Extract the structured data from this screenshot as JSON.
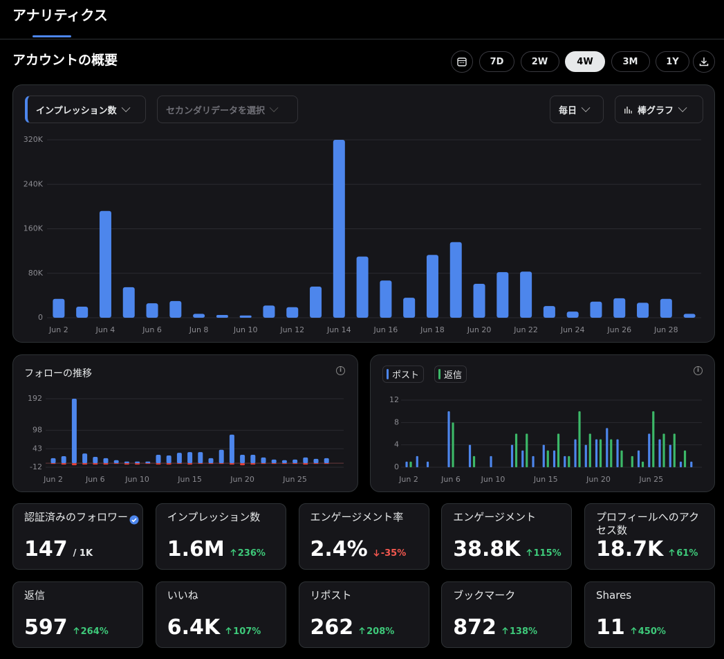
{
  "header": {
    "tab": "アナリティクス"
  },
  "overview": {
    "title": "アカウントの概要",
    "ranges": [
      "7D",
      "2W",
      "4W",
      "3M",
      "1Y"
    ],
    "selected_range": "4W"
  },
  "controls": {
    "metric": "インプレッション数",
    "secondary": "セカンダリデータを選択",
    "interval": "毎日",
    "chart_style": "棒グラフ"
  },
  "chart_data": [
    {
      "type": "bar",
      "categories": [
        "Jun 2",
        null,
        "Jun 4",
        null,
        "Jun 6",
        null,
        "Jun 8",
        null,
        "Jun 10",
        null,
        "Jun 12",
        null,
        "Jun 14",
        null,
        "Jun 16",
        null,
        "Jun 18",
        null,
        "Jun 20",
        null,
        "Jun 22",
        null,
        "Jun 24",
        null,
        "Jun 26",
        null,
        "Jun 28",
        null
      ],
      "values": [
        34000,
        20000,
        192000,
        55000,
        26000,
        30000,
        7000,
        5000,
        4000,
        22000,
        19000,
        56000,
        320000,
        110000,
        67000,
        36000,
        113000,
        136000,
        61000,
        82000,
        83000,
        21000,
        11000,
        29000,
        35000,
        27000,
        34000,
        7000
      ],
      "color": "#4d86ec",
      "ylim": [
        0,
        320000
      ],
      "yticks": [
        0,
        {
          "value": 80000,
          "label": "80K"
        },
        {
          "value": 160000,
          "label": "160K"
        },
        {
          "value": 240000,
          "label": "240K"
        },
        {
          "value": 320000,
          "label": "320K"
        }
      ],
      "grid": true
    },
    {
      "type": "bar",
      "title": "フォローの推移",
      "categories": [
        "Jun 2",
        null,
        null,
        null,
        "Jun 6",
        null,
        null,
        null,
        "Jun 10",
        null,
        null,
        null,
        null,
        "Jun 15",
        null,
        null,
        null,
        null,
        "Jun 20",
        null,
        null,
        null,
        null,
        "Jun 25",
        null,
        null,
        null
      ],
      "series": [
        {
          "color": "#4d86ec",
          "values": [
            15,
            21,
            192,
            29,
            19,
            15,
            9,
            5,
            5,
            5,
            25,
            23,
            31,
            33,
            33,
            15,
            40,
            85,
            25,
            25,
            17,
            11,
            9,
            11,
            17,
            13,
            15
          ]
        },
        {
          "color": "#e0403a",
          "values": [
            -2,
            -4,
            -6,
            -4,
            -4,
            -4,
            -2,
            -4,
            -4,
            -2,
            -4,
            -4,
            -2,
            -4,
            -2,
            -2,
            -2,
            -4,
            -6,
            -4,
            -2,
            -2,
            -2,
            -2,
            -4,
            -2,
            -2
          ]
        }
      ],
      "ylim": [
        -12,
        192
      ],
      "yticks": [
        -12,
        43,
        98,
        192
      ],
      "grid": true
    },
    {
      "type": "bar",
      "categories": [
        "Jun 2",
        null,
        null,
        null,
        "Jun 6",
        null,
        null,
        null,
        "Jun 10",
        null,
        null,
        null,
        null,
        "Jun 15",
        null,
        null,
        null,
        null,
        "Jun 20",
        null,
        null,
        null,
        null,
        "Jun 25",
        null,
        null,
        null,
        null
      ],
      "series": [
        {
          "name": "ポスト",
          "color": "#4d86ec",
          "values": [
            1,
            2,
            1,
            0,
            10,
            0,
            4,
            0,
            2,
            0,
            4,
            3,
            2,
            4,
            3,
            2,
            5,
            4,
            5,
            7,
            5,
            0,
            3,
            6,
            5,
            4,
            1,
            1
          ]
        },
        {
          "name": "返信",
          "color": "#3cb868",
          "values": [
            1,
            0,
            0,
            0,
            8,
            0,
            2,
            0,
            0,
            0,
            6,
            6,
            0,
            3,
            6,
            2,
            10,
            6,
            5,
            5,
            3,
            2,
            1,
            10,
            6,
            6,
            3,
            0
          ]
        }
      ],
      "ylim": [
        0,
        12
      ],
      "yticks": [
        0,
        4,
        8,
        12
      ],
      "grid": true
    }
  ],
  "cards": [
    {
      "label": "認証済みのフォロワー",
      "value": "147",
      "total": "/ 1K",
      "verified": true
    },
    {
      "label": "インプレッション数",
      "value": "1.6M",
      "change": "236%",
      "trend": "up"
    },
    {
      "label": "エンゲージメント率",
      "value": "2.4%",
      "change": "-35%",
      "trend": "down"
    },
    {
      "label": "エンゲージメント",
      "value": "38.8K",
      "change": "115%",
      "trend": "up"
    },
    {
      "label": "プロフィールへのアクセス数",
      "value": "18.7K",
      "change": "61%",
      "trend": "up"
    },
    {
      "label": "返信",
      "value": "597",
      "change": "264%",
      "trend": "up"
    },
    {
      "label": "いいね",
      "value": "6.4K",
      "change": "107%",
      "trend": "up"
    },
    {
      "label": "リポスト",
      "value": "262",
      "change": "208%",
      "trend": "up"
    },
    {
      "label": "ブックマーク",
      "value": "872",
      "change": "138%",
      "trend": "up"
    },
    {
      "label": "Shares",
      "value": "11",
      "change": "450%",
      "trend": "up"
    }
  ]
}
